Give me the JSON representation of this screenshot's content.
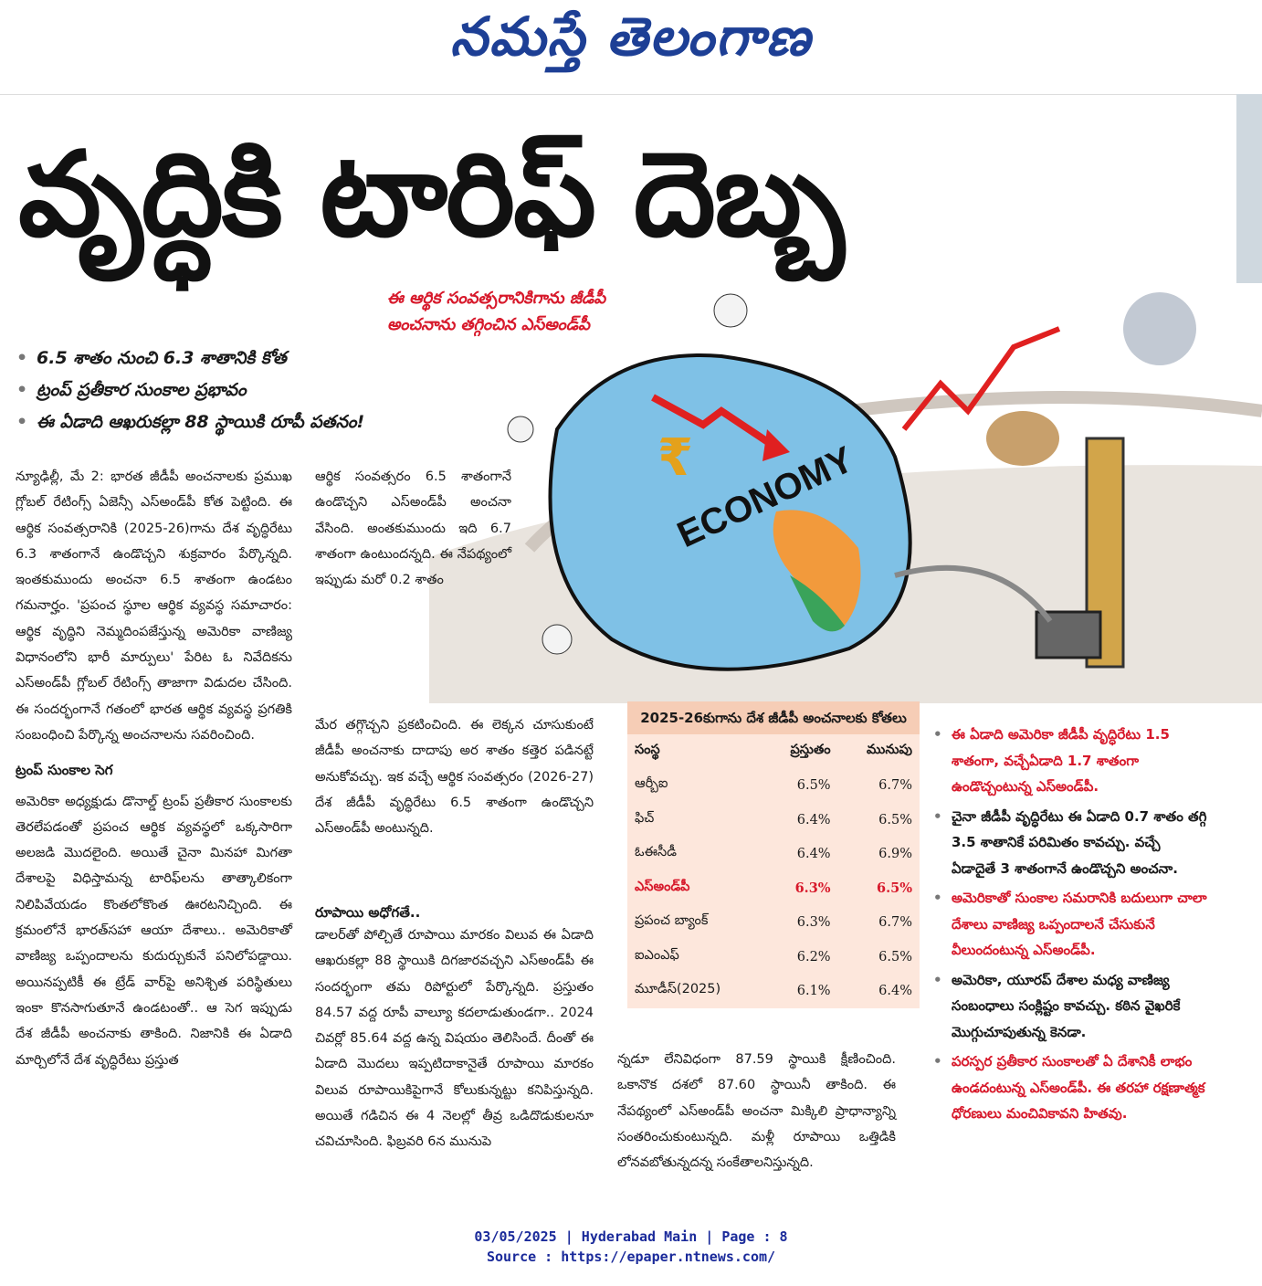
{
  "masthead": "నమస్తే తెలంగాణ",
  "headline": "వృద్ధికి టారిఫ్ దెబ్బ",
  "kicker": "ఈ ఆర్థిక సంవత్సరానికిగాను జీడీపీ అంచనాను తగ్గించిన ఎస్అండ్‌పీ",
  "bullets": [
    "6.5 శాతం నుంచి 6.3 శాతానికి కోత",
    "ట్రంప్ ప్రతీకార సుంకాల ప్రభావం",
    "ఈ ఏడాది ఆఖరుకల్లా 88 స్థాయికి రూపీ పతనం!"
  ],
  "col1_p1": "న్యూఢిల్లీ, మే 2: భారత జీడీపీ అంచనాలకు ప్రముఖ గ్లోబల్ రేటింగ్స్ ఏజెన్సీ ఎస్అండ్‌పీ కోత పెట్టింది. ఈ ఆర్థిక సంవత్సరానికి (2025-26)గాను దేశ వృద్ధిరేటు 6.3 శాతంగానే ఉండొచ్చని శుక్రవారం పేర్కొన్నది. ఇంతకుముందు అంచనా 6.5 శాతంగా ఉండటం గమనార్హం. 'ప్రపంచ స్థూల ఆర్థిక వ్యవస్థ సమాచారం: ఆర్థిక వృద్ధిని నెమ్మదింపజేస్తున్న అమెరికా వాణిజ్య విధానంలోని భారీ మార్పులు' పేరిట ఓ నివేదికను ఎస్అండ్‌పీ గ్లోబల్ రేటింగ్స్ తాజాగా విడుదల చేసింది. ఈ సందర్భంగానే గతంలో భారత ఆర్థిక వ్యవస్థ ప్రగతికి సంబంధించి పేర్కొన్న అంచనాలను సవరించింది.",
  "col1_sub": "ట్రంప్ సుంకాల సెగ",
  "col1_p2": "అమెరికా అధ్యక్షుడు డొనాల్డ్ ట్రంప్ ప్రతీకార సుంకాలకు తెరలేపడంతో ప్రపంచ ఆర్థిక వ్యవస్థలో ఒక్కసారిగా అలజడి మొదలైంది. అయితే చైనా మినహా మిగతా దేశాలపై విధిస్తామన్న టారిఫ్‌లను తాత్కాలికంగా నిలిపివేయడం కొంతలోకొంత ఊరటనిచ్చింది. ఈ క్రమంలోనే భారత్‌సహా ఆయా దేశాలు.. అమెరికాతో వాణిజ్య ఒప్పందాలను కుదుర్చుకునే పనిలోపడ్డాయి. అయినప్పటికీ ఈ ట్రేడ్ వార్‌పై అనిశ్చిత పరిస్థితులు ఇంకా కొనసాగుతూనే ఉండటంతో.. ఆ సెగ ఇప్పుడు దేశ జీడీపీ అంచనాకు తాకింది. నిజానికి ఈ ఏడాది మార్చిలోనే దేశ వృద్ధిరేటు ప్రస్తుత",
  "col2_a": "ఆర్థిక సంవత్సరం 6.5 శాతంగానే ఉండొచ్చని ఎస్అండ్‌పీ అంచనా వేసింది. అంతకుముందు ఇది 6.7 శాతంగా ఉంటుందన్నది. ఈ నేపథ్యంలో ఇప్పుడు మరో 0.2 శాతం",
  "col2_b": "మేర తగ్గొచ్చని ప్రకటించింది. ఈ లెక్కన చూసుకుంటే జీడీపీ అంచనాకు దాదాపు అర శాతం కత్తెర పడినట్టే అనుకోవచ్చు. ఇక వచ్చే ఆర్థిక సంవత్సరం (2026-27) దేశ జీడీపీ వృద్ధిరేటు 6.5 శాతంగా ఉండొచ్చని ఎస్అండ్‌పీ అంటున్నది.",
  "col2_sub": "రూపాయి అధోగతే..",
  "col2_c": "డాలర్‌తో పోల్చితే రూపాయి మారకం విలువ ఈ ఏడాది ఆఖరుకల్లా 88 స్థాయికి దిగజారవచ్చని ఎస్అండ్‌పీ ఈ సందర్భంగా తమ రిపోర్టులో పేర్కొన్నది. ప్రస్తుతం 84.57 వద్ద రూపీ వాల్యూ కదలాడుతుండగా.. 2024 చివర్లో 85.64 వద్ద ఉన్న విషయం తెలిసిందే. దీంతో ఈ ఏడాది మొదలు ఇప్పటిదాకానైతే రూపాయి మారకం విలువ రూపాయికిపైగానే కోలుకున్నట్టు కనిపిస్తున్నది. అయితే గడిచిన ఈ 4 నెలల్లో తీవ్ర ఒడిదొడుకులనూ చవిచూసింది. ఫిబ్రవరి 6న మునుపె",
  "col3_b": "న్నడూ లేనివిధంగా 87.59 స్థాయికి క్షీణించింది. ఒకానొక దశలో 87.60 స్థాయినీ తాకింది. ఈ నేపథ్యంలో ఎస్అండ్‌పీ అంచనా మిక్కిలి ప్రాధాన్యాన్ని సంతరించుకుంటున్నది. మళ్లీ రూపాయి ఒత్తిడికి లోనవబోతున్నదన్న సంకేతాలనిస్తున్నది.",
  "table": {
    "title": "2025-26కుగాను దేశ జీడీపీ అంచనాలకు కోతలు",
    "headers": [
      "సంస్థ",
      "ప్రస్తుతం",
      "మునుపు"
    ],
    "rows": [
      {
        "org": "ఆర్బీఐ",
        "current": "6.5%",
        "previous": "6.7%"
      },
      {
        "org": "ఫిచ్",
        "current": "6.4%",
        "previous": "6.5%"
      },
      {
        "org": "ఓఈసీడీ",
        "current": "6.4%",
        "previous": "6.9%"
      },
      {
        "org": "ఎస్అండ్‌పీ",
        "current": "6.3%",
        "previous": "6.5%"
      },
      {
        "org": "ప్రపంచ బ్యాంక్",
        "current": "6.3%",
        "previous": "6.7%"
      },
      {
        "org": "ఐఎంఎఫ్",
        "current": "6.2%",
        "previous": "6.5%"
      },
      {
        "org": "మూడీస్(2025)",
        "current": "6.1%",
        "previous": "6.4%"
      }
    ],
    "highlight_color": "#d7192b"
  },
  "side_bullets": [
    "ఈ ఏడాది అమెరికా జీడీపీ వృద్ధిరేటు 1.5 శాతంగా, వచ్చేఏడాది 1.7 శాతంగా ఉండొచ్చంటున్న ఎస్అండ్‌పీ.",
    "చైనా జీడీపీ వృద్ధిరేటు ఈ ఏడాది 0.7 శాతం తగ్గి 3.5 శాతానికే పరిమితం కావచ్చు. వచ్చే ఏడాదైతే 3 శాతంగానే ఉండొచ్చని అంచనా.",
    "అమెరికాతో సుంకాల సమరానికి బదులుగా చాలా దేశాలు వాణిజ్య ఒప్పందాలనే చేసుకునే వీలుందంటున్న ఎస్అండ్‌పీ.",
    "అమెరికా, యూరప్ దేశాల మధ్య వాణిజ్య సంబంధాలు సంక్లిష్టం కావచ్చు. కఠిన వైఖరికే మొగ్గుచూపుతున్న కెనడా.",
    "పరస్పర ప్రతీకార సుంకాలతో ఏ దేశానికీ లాభం ఉండదంటున్న ఎస్అండ్‌పీ. ఈ తరహా రక్షణాత్మక ధోరణులు మంచివికావని హితవు."
  ],
  "illustration": {
    "economy_label": "ECONOMY",
    "rupee_symbol": "₹"
  },
  "footer": {
    "line1": "03/05/2025 | Hyderabad Main | Page : 8",
    "line2": "Source : https://epaper.ntnews.com/"
  },
  "colors": {
    "masthead": "#1d3f95",
    "accent_red": "#d7192b",
    "footer": "#1a2a9a",
    "table_bg": "#fde7dc"
  }
}
